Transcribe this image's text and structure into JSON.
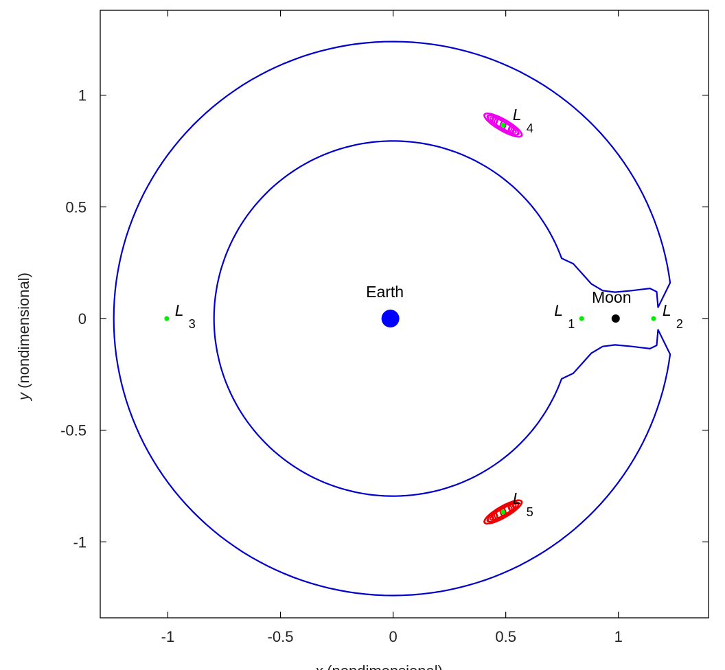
{
  "chart_data": {
    "type": "line",
    "title": "",
    "xlabel_var": "x",
    "xlabel_rest": " (nondimensional)",
    "ylabel_var": "y",
    "ylabel_rest": " (nondimensional)",
    "xlim": [
      -1.3,
      1.4
    ],
    "ylim": [
      -1.34,
      1.38
    ],
    "grid": false,
    "xticks": [
      -1,
      -0.5,
      0,
      0.5,
      1
    ],
    "xtick_labels": [
      "-1",
      "-0.5",
      "0",
      "0.5",
      "1"
    ],
    "yticks": [
      1,
      0.5,
      0,
      -0.5,
      -1
    ],
    "ytick_labels": [
      "1",
      "0.5",
      "0",
      "-0.5",
      "-1"
    ],
    "colors": {
      "zero_velocity_curve": "#0000c8",
      "earth": "#0000ff",
      "moon": "#000000",
      "lagrange_points": "#00ee00",
      "l4_orbit": "#ee00ee",
      "l5_orbit": "#ee0000",
      "axes": "#000000"
    },
    "zero_velocity_curve": {
      "outer_radius": 1.24,
      "inner_radius": 0.795,
      "neck_half_width": 0.118,
      "neck_x": 0.985,
      "right_lobe_extent": 1.176
    },
    "bodies": [
      {
        "name": "Earth",
        "x": -0.0121,
        "y": 0
      },
      {
        "name": "Moon",
        "x": 0.9879,
        "y": 0
      }
    ],
    "lagrange_points": [
      {
        "label": "L",
        "sub": "1",
        "x": 0.837,
        "y": 0
      },
      {
        "label": "L",
        "sub": "2",
        "x": 1.156,
        "y": 0
      },
      {
        "label": "L",
        "sub": "3",
        "x": -1.005,
        "y": 0
      },
      {
        "label": "L",
        "sub": "4",
        "x": 0.488,
        "y": 0.866
      },
      {
        "label": "L",
        "sub": "5",
        "x": 0.488,
        "y": -0.866
      }
    ],
    "series": [
      {
        "name": "L4 orbit",
        "center": [
          0.488,
          0.866
        ],
        "semi_major": 0.095,
        "semi_minor": 0.025,
        "tilt_deg": -30
      },
      {
        "name": "L5 orbit",
        "center": [
          0.488,
          -0.866
        ],
        "semi_major": 0.095,
        "semi_minor": 0.025,
        "tilt_deg": 30
      }
    ]
  }
}
